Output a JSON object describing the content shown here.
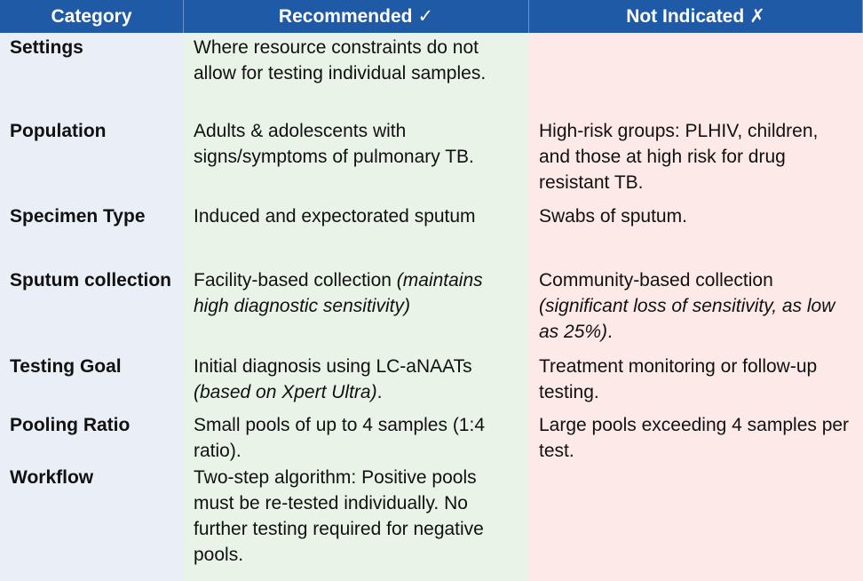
{
  "headers": {
    "category": "Category",
    "recommended": "Recommended",
    "recommended_mark": "✓",
    "not_indicated": "Not Indicated",
    "not_indicated_mark": "✗"
  },
  "colors": {
    "header": "#1f5aa6",
    "category_col": "#e9eef7",
    "recommended_col": "#e9f3e8",
    "not_indicated_col": "#fde9e7"
  },
  "rows": [
    {
      "category": "Settings",
      "recommended": "Where resource constraints do not allow for testing individual samples.",
      "not_indicated": ""
    },
    {
      "category": "Population",
      "recommended": "Adults & adolescents with signs/symptoms of pulmonary TB.",
      "not_indicated": "High-risk groups: PLHIV, children, and those at high risk for drug resistant TB."
    },
    {
      "category": "Specimen Type",
      "recommended": "Induced and expectorated sputum",
      "not_indicated": "Swabs of sputum."
    },
    {
      "category": "Sputum collection",
      "recommended": "Facility-based collection",
      "recommended_italic": "(maintains high diagnostic sensitivity)",
      "not_indicated": "Community-based collection",
      "not_indicated_italic": "(significant loss of sensitivity, as low as 25%)",
      "not_indicated_tail": "."
    },
    {
      "category": "Testing Goal",
      "recommended": "Initial diagnosis using LC-aNAATs",
      "recommended_italic": "(based on Xpert Ultra)",
      "recommended_tail": ".",
      "not_indicated": "Treatment monitoring or follow-up testing."
    },
    {
      "category": "Pooling Ratio",
      "recommended": "Small pools of up to 4 samples (1:4 ratio).",
      "not_indicated": "Large pools exceeding 4 samples per test."
    },
    {
      "category": "Workflow",
      "recommended": "Two-step algorithm: Positive pools must be re-tested individually. No further testing required for negative pools.",
      "not_indicated": ""
    }
  ]
}
